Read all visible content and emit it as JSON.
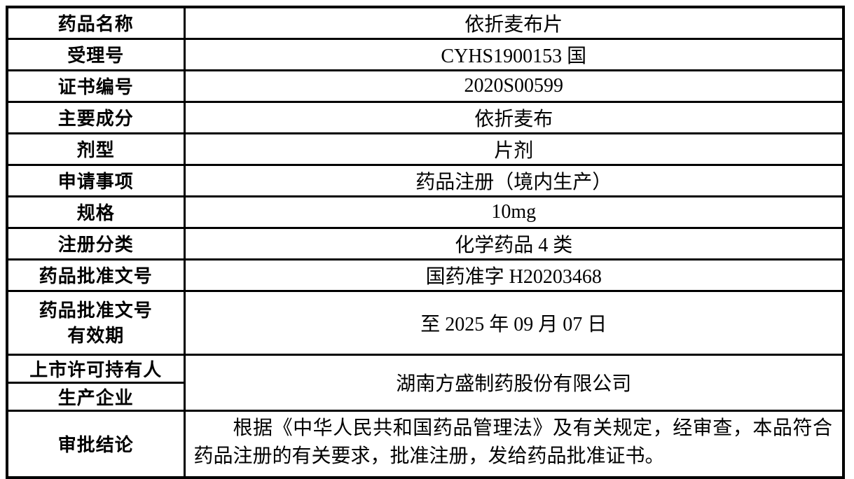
{
  "colors": {
    "border": "#000000",
    "background": "#ffffff",
    "text": "#000000"
  },
  "table": {
    "simple_rows": [
      {
        "label": "药品名称",
        "value": "依折麦布片"
      },
      {
        "label": "受理号",
        "value": "CYHS1900153 国"
      },
      {
        "label": "证书编号",
        "value": "2020S00599"
      },
      {
        "label": "主要成分",
        "value": "依折麦布"
      },
      {
        "label": "剂型",
        "value": "片剂"
      },
      {
        "label": "申请事项",
        "value": "药品注册（境内生产）"
      },
      {
        "label": "规格",
        "value": "10mg"
      },
      {
        "label": "注册分类",
        "value": "化学药品 4 类"
      },
      {
        "label": "药品批准文号",
        "value": "国药准字 H20203468"
      }
    ],
    "validity_row": {
      "label_line1": "药品批准文号",
      "label_line2": "有效期",
      "value": "至 2025 年 09 月 07 日"
    },
    "holder_row": {
      "label": "上市许可持有人"
    },
    "manufacturer_row": {
      "label": "生产企业"
    },
    "holder_manufacturer_value": "湖南方盛制药股份有限公司",
    "conclusion_row": {
      "label": "审批结论",
      "value": "根据《中华人民共和国药品管理法》及有关规定，经审查，本品符合药品注册的有关要求，批准注册，发给药品批准证书。"
    }
  }
}
